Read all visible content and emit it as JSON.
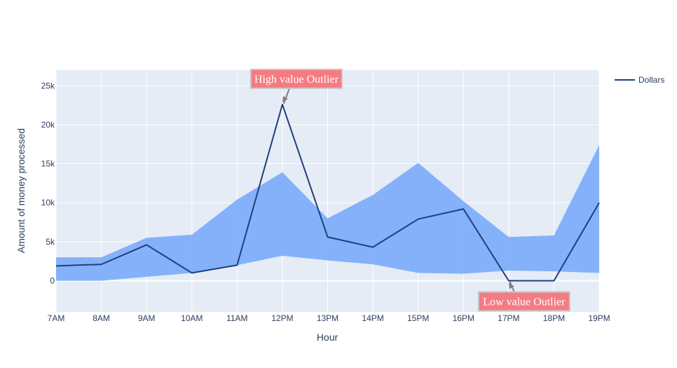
{
  "chart_data": {
    "type": "line",
    "title": "",
    "xlabel": "Hour",
    "ylabel": "Amount of money processed",
    "categories": [
      "7AM",
      "8AM",
      "9AM",
      "10AM",
      "11AM",
      "12PM",
      "13PM",
      "14PM",
      "15PM",
      "16PM",
      "17PM",
      "18PM",
      "19PM"
    ],
    "ylim": [
      -4000,
      27000
    ],
    "yticks": [
      0,
      5000,
      10000,
      15000,
      20000,
      25000
    ],
    "ytick_labels": [
      "0",
      "5k",
      "10k",
      "15k",
      "20k",
      "25k"
    ],
    "band": {
      "upper": [
        3000,
        3000,
        5500,
        5900,
        10400,
        13900,
        8000,
        11000,
        15100,
        10200,
        5600,
        5800,
        17400
      ],
      "lower": [
        0,
        0,
        500,
        1000,
        2000,
        3200,
        2600,
        2100,
        1000,
        900,
        1300,
        1200,
        1000
      ],
      "color": "#7eaefa"
    },
    "series": [
      {
        "name": "Dollars",
        "values": [
          1900,
          2100,
          4600,
          1000,
          2000,
          22600,
          5600,
          4300,
          7900,
          9200,
          0,
          0,
          10000
        ],
        "color": "#1f3f7a"
      }
    ],
    "legend_position": "top-right",
    "annotations": [
      {
        "text": "High value Outlier",
        "category": "12PM",
        "value": 22600,
        "placement": "above",
        "bg": "#f47b82",
        "border": "#c8c8c8"
      },
      {
        "text": "Low value Outlier",
        "category": "17PM",
        "value": 0,
        "placement": "below",
        "bg": "#f47b82",
        "border": "#c8c8c8"
      }
    ],
    "plot_bg": "#e5ecf6",
    "grid_color": "#ffffff"
  }
}
